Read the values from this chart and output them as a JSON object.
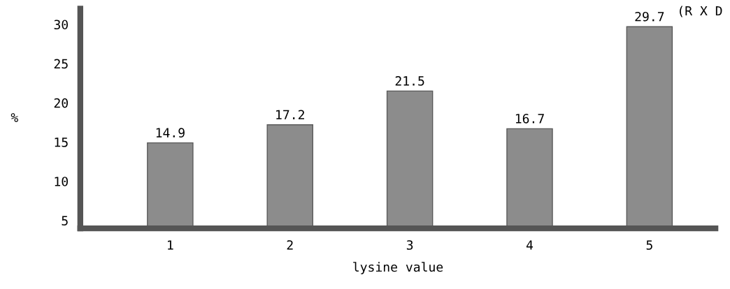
{
  "chart_data": {
    "type": "bar",
    "categories": [
      "1",
      "2",
      "3",
      "4",
      "5"
    ],
    "values": [
      14.9,
      17.2,
      21.5,
      16.7,
      29.7
    ],
    "color": "#8c8c8c",
    "data_labels": true,
    "xlabel": "lysine value",
    "ylabel": "%",
    "ylim": [
      4,
      32
    ],
    "yticks": [
      5,
      10,
      15,
      20,
      25,
      30
    ],
    "grid": false,
    "annotations": [
      "(R X D"
    ]
  }
}
